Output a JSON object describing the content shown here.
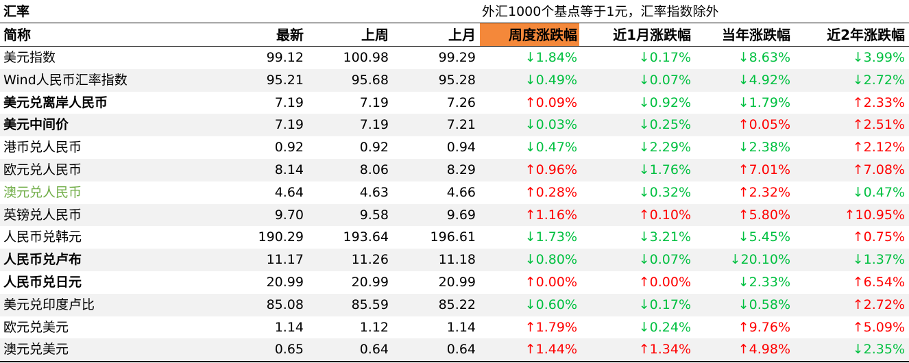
{
  "header": {
    "title": "汇率",
    "note": "外汇1000个基点等于1元，汇率指数除外"
  },
  "table": {
    "columns": [
      "简称",
      "最新",
      "上周",
      "上月",
      "周度涨跌幅",
      "近1月涨跌幅",
      "当年涨跌幅",
      "近2年涨跌幅"
    ],
    "rows": [
      {
        "cells": [
          "美元指数",
          "99.12",
          "100.98",
          "99.29",
          "↓1.84%",
          "↓0.17%",
          "↓8.63%",
          "↓3.99%"
        ]
      },
      {
        "cells": [
          "Wind人民币汇率指数",
          "95.21",
          "95.68",
          "95.28",
          "↓0.49%",
          "↓0.07%",
          "↓4.92%",
          "↓2.72%"
        ]
      },
      {
        "cells": [
          "美元兑离岸人民币",
          "7.19",
          "7.19",
          "7.26",
          "↑0.09%",
          "↓0.92%",
          "↓1.79%",
          "↑2.33%"
        ],
        "bold": true
      },
      {
        "cells": [
          "美元中间价",
          "7.19",
          "7.19",
          "7.21",
          "↓0.03%",
          "↓0.25%",
          "↑0.05%",
          "↑2.51%"
        ],
        "bold": true
      },
      {
        "cells": [
          "港币兑人民币",
          "0.92",
          "0.92",
          "0.94",
          "↓0.47%",
          "↓2.29%",
          "↓2.38%",
          "↑2.12%"
        ]
      },
      {
        "cells": [
          "欧元兑人民币",
          "8.14",
          "8.06",
          "8.29",
          "↑0.96%",
          "↓1.76%",
          "↑7.01%",
          "↑7.08%"
        ]
      },
      {
        "cells": [
          "澳元兑人民币",
          "4.64",
          "4.63",
          "4.66",
          "↑0.28%",
          "↓0.32%",
          "↑2.32%",
          "↓0.47%"
        ],
        "name_color": "#70ad47"
      },
      {
        "cells": [
          "英镑兑人民币",
          "9.70",
          "9.58",
          "9.69",
          "↑1.16%",
          "↑0.10%",
          "↑5.80%",
          "↑10.95%"
        ]
      },
      {
        "cells": [
          "人民币兑韩元",
          "190.29",
          "193.64",
          "196.61",
          "↓1.73%",
          "↓3.21%",
          "↓5.45%",
          "↑0.75%"
        ]
      },
      {
        "cells": [
          "人民币兑卢布",
          "11.17",
          "11.26",
          "11.18",
          "↓0.80%",
          "↓0.07%",
          "↓20.10%",
          "↓1.37%"
        ],
        "bold": true
      },
      {
        "cells": [
          "人民币兑日元",
          "20.99",
          "20.99",
          "20.99",
          "↑0.00%",
          "↑0.00%",
          "↓2.33%",
          "↑6.54%"
        ],
        "bold": true
      },
      {
        "cells": [
          "美元兑印度卢比",
          "85.08",
          "85.59",
          "85.22",
          "↓0.60%",
          "↓0.17%",
          "↓0.58%",
          "↑2.72%"
        ]
      },
      {
        "cells": [
          "欧元兑美元",
          "1.14",
          "1.12",
          "1.14",
          "↑1.79%",
          "↓0.24%",
          "↑9.76%",
          "↑5.09%"
        ]
      },
      {
        "cells": [
          "澳元兑美元",
          "0.65",
          "0.64",
          "0.64",
          "↑1.44%",
          "↑1.34%",
          "↑4.98%",
          "↓2.35%"
        ]
      }
    ]
  }
}
